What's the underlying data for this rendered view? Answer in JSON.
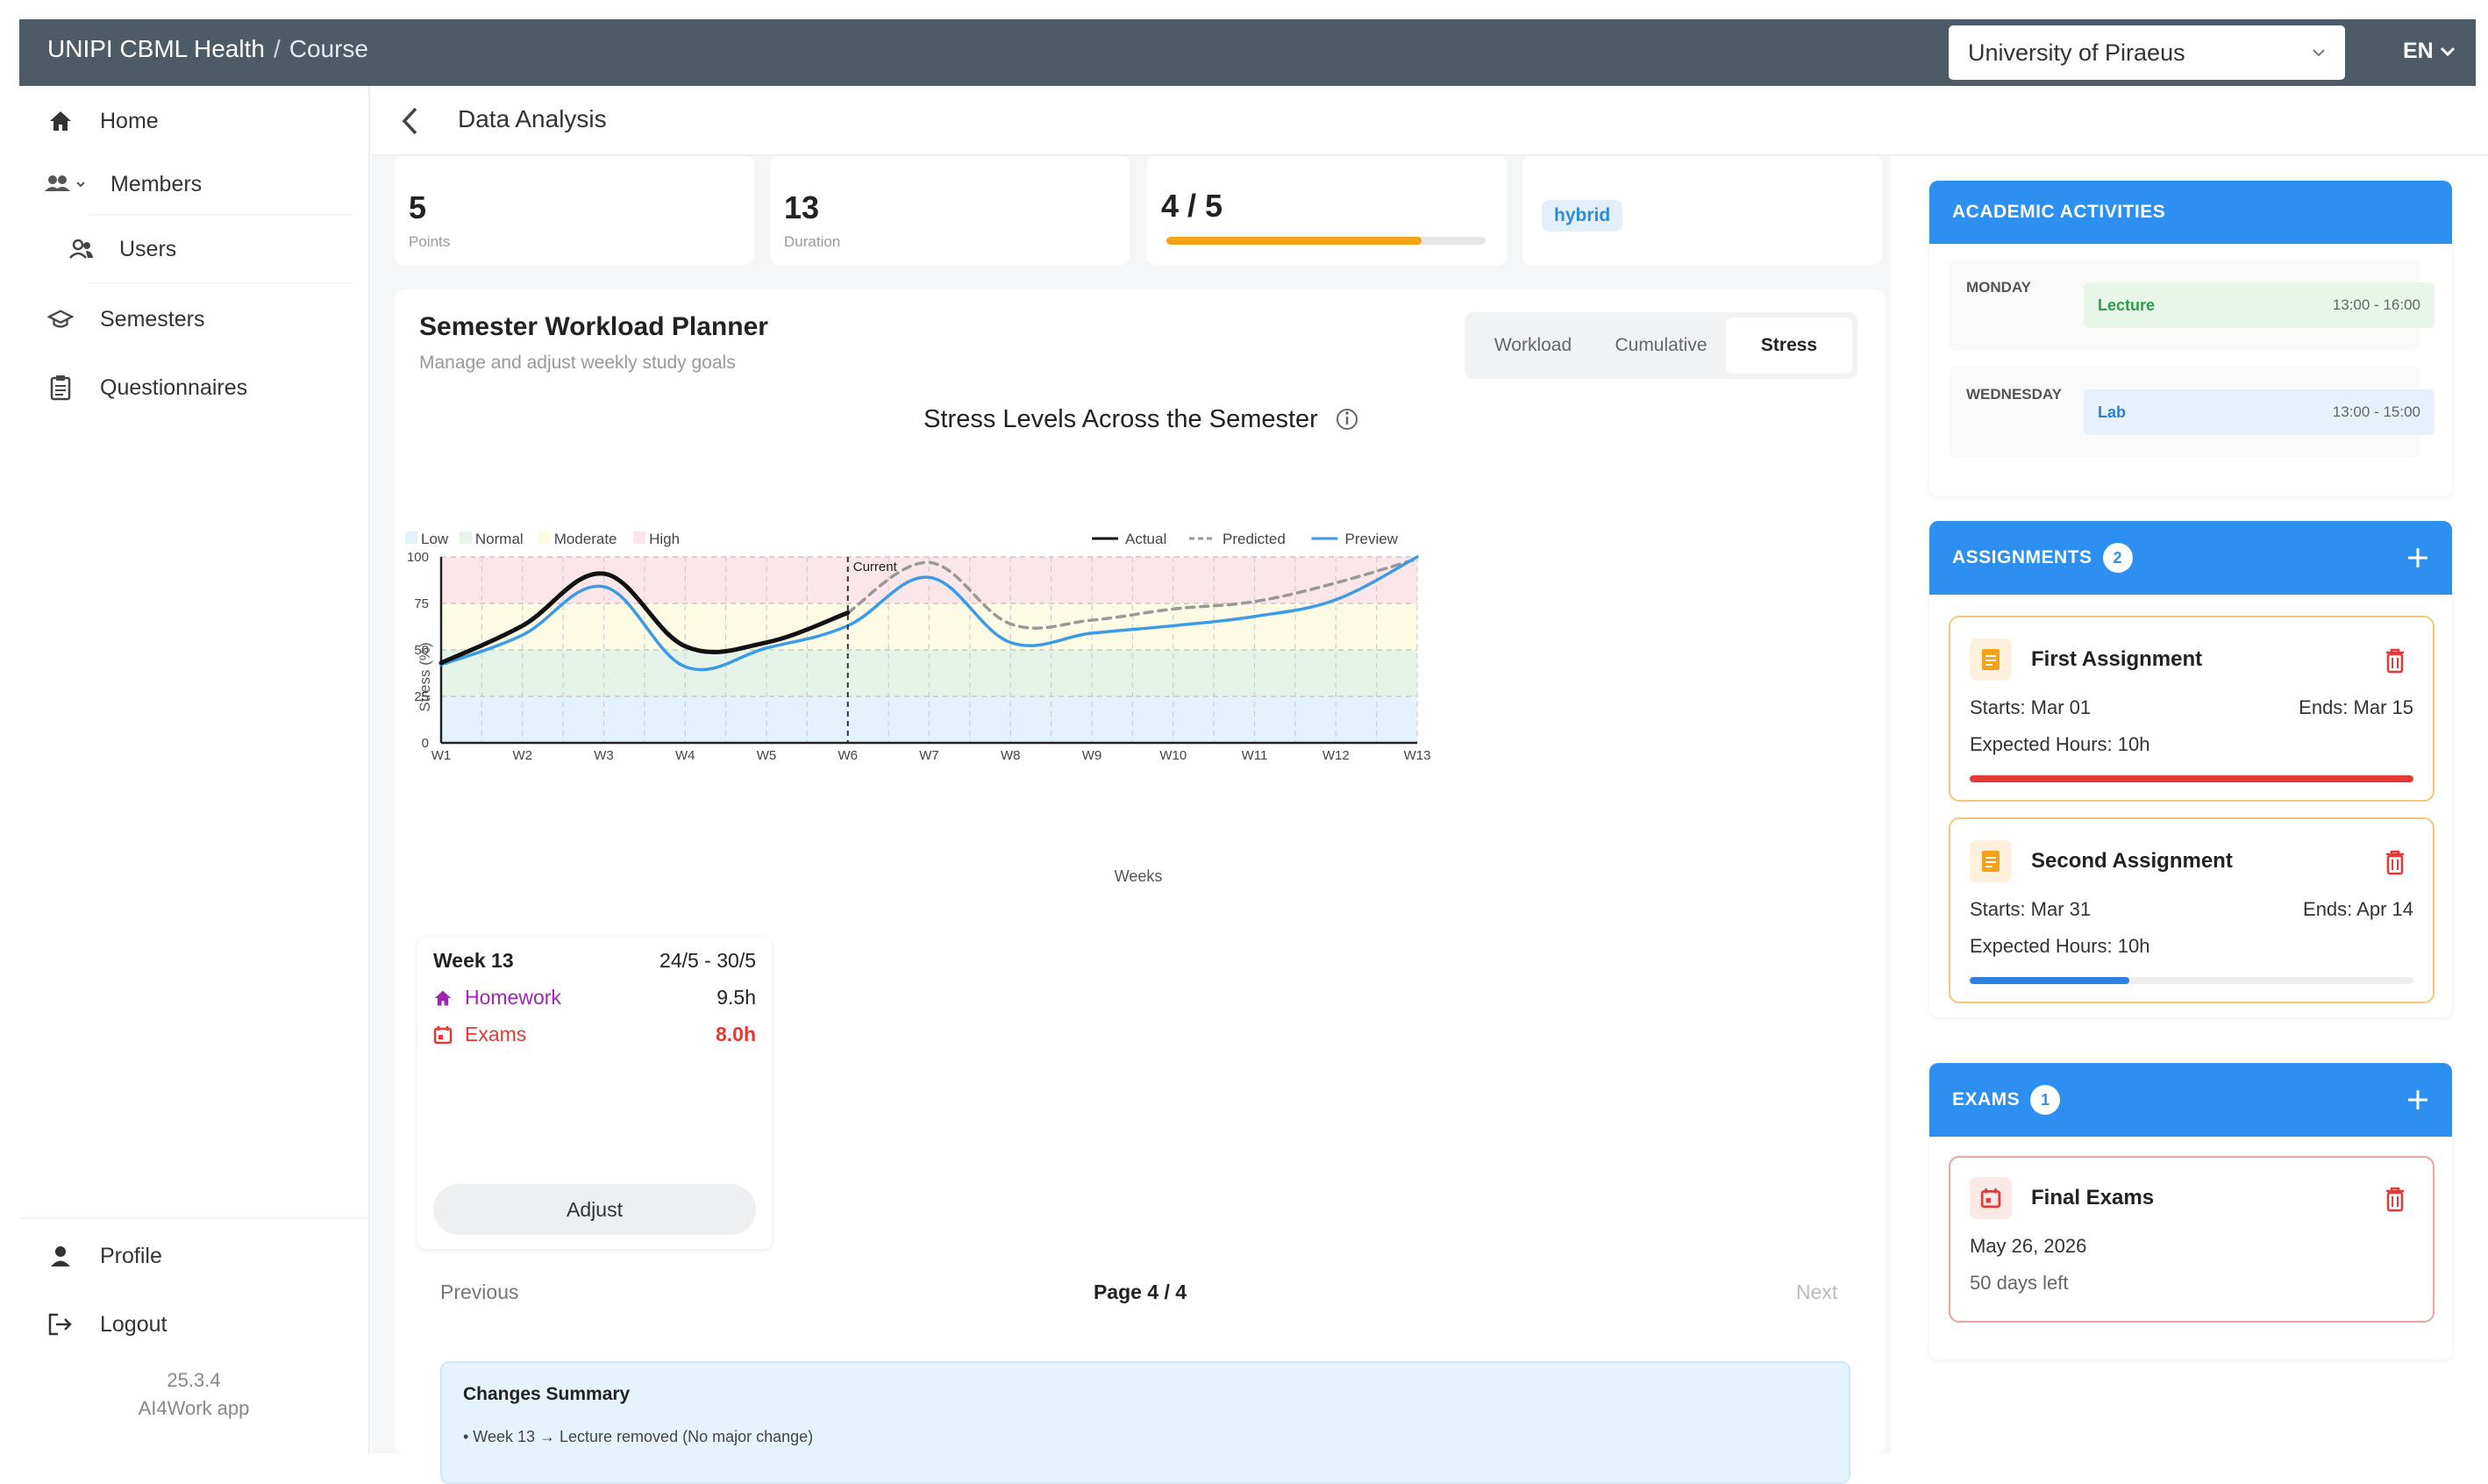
{
  "topbar": {
    "app_name": "UNIPI CBML Health",
    "separator": "/",
    "breadcrumb": "Course",
    "university_select": "University of Piraeus",
    "language": "EN"
  },
  "sidebar": {
    "items": [
      {
        "label": "Home",
        "icon": "home-icon"
      },
      {
        "label": "Members",
        "icon": "group-icon"
      },
      {
        "label": "Users",
        "icon": "users-icon"
      },
      {
        "label": "Semesters",
        "icon": "school-icon"
      },
      {
        "label": "Questionnaires",
        "icon": "clipboard-icon"
      }
    ],
    "bottom_items": [
      {
        "label": "Profile",
        "icon": "person-icon"
      },
      {
        "label": "Logout",
        "icon": "logout-icon"
      }
    ],
    "version": "25.3.4",
    "app_label": "AI4Work app"
  },
  "header": {
    "title": "Data Analysis"
  },
  "stats": {
    "points_value": "5",
    "points_label": "Points",
    "duration_value": "13",
    "duration_label": "Duration",
    "progress_text": "4 / 5",
    "progress_fraction": 0.8,
    "mode": "hybrid"
  },
  "planner": {
    "title": "Semester Workload Planner",
    "subtitle": "Manage and adjust weekly study goals",
    "tabs": [
      "Workload",
      "Cumulative",
      "Stress"
    ],
    "active_tab": "Stress"
  },
  "chart_data": {
    "type": "line",
    "title": "Stress Levels Across the Semester",
    "xlabel": "Weeks",
    "ylabel": "Stress (%)",
    "x": [
      "W1",
      "W2",
      "W3",
      "W4",
      "W5",
      "W6",
      "W7",
      "W8",
      "W9",
      "W10",
      "W11",
      "W12",
      "W13"
    ],
    "ylim": [
      0,
      100
    ],
    "yticks": [
      0,
      25,
      50,
      75,
      100
    ],
    "zones": [
      {
        "name": "Low",
        "from": 0,
        "to": 25,
        "color": "#e3f2fb"
      },
      {
        "name": "Normal",
        "from": 25,
        "to": 50,
        "color": "#e6f3e8"
      },
      {
        "name": "Moderate",
        "from": 50,
        "to": 75,
        "color": "#fdfbe4"
      },
      {
        "name": "High",
        "from": 75,
        "to": 100,
        "color": "#fde6ea"
      }
    ],
    "current_marker": {
      "x": "W6",
      "label": "Current"
    },
    "series": [
      {
        "name": "Actual",
        "color": "#111111",
        "style": "solid",
        "values": [
          43,
          63,
          91,
          52,
          54,
          70,
          null,
          null,
          null,
          null,
          null,
          null,
          null
        ]
      },
      {
        "name": "Predicted",
        "color": "#999999",
        "style": "dashed",
        "values": [
          null,
          null,
          null,
          null,
          null,
          70,
          97,
          64,
          66,
          72,
          76,
          86,
          99
        ]
      },
      {
        "name": "Preview",
        "color": "#3b9be6",
        "style": "solid",
        "values": [
          42,
          58,
          84,
          41,
          51,
          63,
          89,
          54,
          59,
          63,
          68,
          77,
          100
        ]
      }
    ],
    "legend_position": "top-right",
    "grid": true
  },
  "week_card": {
    "week": "Week 13",
    "range": "24/5 - 30/5",
    "rows": [
      {
        "label": "Homework",
        "value": "9.5h",
        "color": "#9c27b0",
        "icon": "home-icon"
      },
      {
        "label": "Exams",
        "value": "8.0h",
        "color": "#e53935",
        "icon": "calendar-icon"
      }
    ],
    "adjust_label": "Adjust"
  },
  "pagination": {
    "previous": "Previous",
    "page": "Page 4 / 4",
    "next": "Next"
  },
  "changes": {
    "title": "Changes Summary",
    "items": [
      "• Week 13 → Lecture removed (No major change)"
    ]
  },
  "activities": {
    "title": "ACADEMIC ACTIVITIES",
    "rows": [
      {
        "day": "MONDAY",
        "name": "Lecture",
        "time": "13:00 - 16:00",
        "bg": "#e8f6ea",
        "fg": "#2e9d4a"
      },
      {
        "day": "WEDNESDAY",
        "name": "Lab",
        "time": "13:00 - 15:00",
        "bg": "#e6f1fb",
        "fg": "#2d7fd0"
      }
    ]
  },
  "assignments": {
    "title": "ASSIGNMENTS",
    "count": "2",
    "items": [
      {
        "title": "First Assignment",
        "starts": "Starts: Mar 01",
        "ends": "Ends: Mar 15",
        "hours": "Expected Hours: 10h",
        "progress": 1.0,
        "bar_color": "#e53935"
      },
      {
        "title": "Second Assignment",
        "starts": "Starts: Mar 31",
        "ends": "Ends: Apr 14",
        "hours": "Expected Hours: 10h",
        "progress": 0.36,
        "bar_color": "#2d7fe0"
      }
    ]
  },
  "exams": {
    "title": "EXAMS",
    "count": "1",
    "items": [
      {
        "title": "Final Exams",
        "date": "May 26, 2026",
        "left": "50 days left"
      }
    ]
  }
}
